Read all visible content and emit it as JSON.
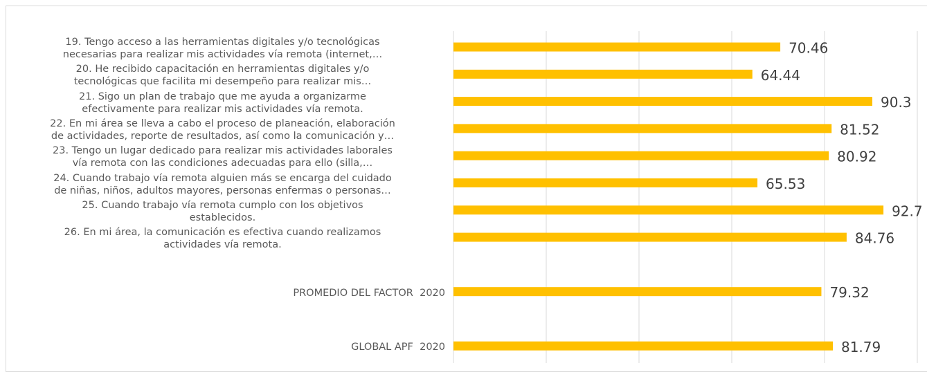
{
  "chart_data": {
    "type": "bar",
    "orientation": "horizontal",
    "categories": [
      "19. Tengo acceso a las herramientas digitales y/o tecnológicas\nnecesarias para realizar mis actividades vía remota (internet,…",
      "20. He recibido capacitación en herramientas digitales y/o\ntecnológicas que facilita mi desempeño para realizar mis…",
      "21. Sigo un plan de trabajo que me ayuda a organizarme\nefectivamente para realizar mis actividades vía remota.",
      "22. En mi área se lleva a cabo el proceso de planeación, elaboración\nde actividades, reporte de resultados, así como la comunicación y…",
      "23. Tengo un lugar dedicado para realizar mis actividades laborales\nvía remota con las condiciones adecuadas para ello (silla,…",
      "24. Cuando trabajo vía remota alguien más se encarga del cuidado\nde niñas, niños, adultos mayores, personas enfermas o personas…",
      "25. Cuando trabajo vía remota cumplo con los objetivos\nestablecidos.",
      "26. En mi área, la comunicación es efectiva cuando realizamos\nactividades vía remota.",
      null,
      "PROMEDIO DEL FACTOR  2020",
      null,
      "GLOBAL APF  2020"
    ],
    "values": [
      70.46,
      64.44,
      90.3,
      81.52,
      80.92,
      65.53,
      92.7,
      84.76,
      null,
      79.32,
      null,
      81.79
    ],
    "color": "#FFC000",
    "xlim": [
      0,
      100
    ],
    "xticks": [
      0,
      20,
      40,
      60,
      80,
      100
    ],
    "grid": true
  }
}
